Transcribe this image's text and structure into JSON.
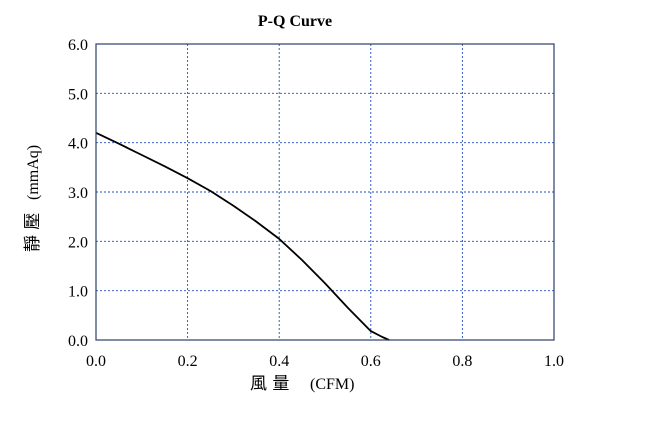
{
  "chart_data": {
    "type": "line",
    "title": "P-Q Curve",
    "xlabel": "風 量 (CFM)",
    "xlabel_cjk": "風 量",
    "xlabel_unit": "(CFM)",
    "ylabel": "靜 壓 (mmAq)",
    "ylabel_cjk": "靜 壓",
    "ylabel_unit": "(mmAq)",
    "xlim": [
      0,
      1.0
    ],
    "ylim": [
      0,
      6.0
    ],
    "xticks": [
      "0.0",
      "0.2",
      "0.4",
      "0.6",
      "0.8",
      "1.0"
    ],
    "yticks": [
      "0.0",
      "1.0",
      "2.0",
      "3.0",
      "4.0",
      "5.0",
      "6.0"
    ],
    "grid": true,
    "series": [
      {
        "x": [
          0.0,
          0.05,
          0.1,
          0.15,
          0.2,
          0.25,
          0.3,
          0.35,
          0.4,
          0.45,
          0.5,
          0.55,
          0.6,
          0.625,
          0.64
        ],
        "y": [
          4.2,
          3.98,
          3.75,
          3.52,
          3.28,
          3.02,
          2.72,
          2.4,
          2.05,
          1.62,
          1.15,
          0.65,
          0.18,
          0.06,
          0.0
        ],
        "color": "#000000"
      }
    ],
    "colors": {
      "grid": "#1f4fbf",
      "frame": "#2b3f6b",
      "series": "#000000"
    }
  }
}
